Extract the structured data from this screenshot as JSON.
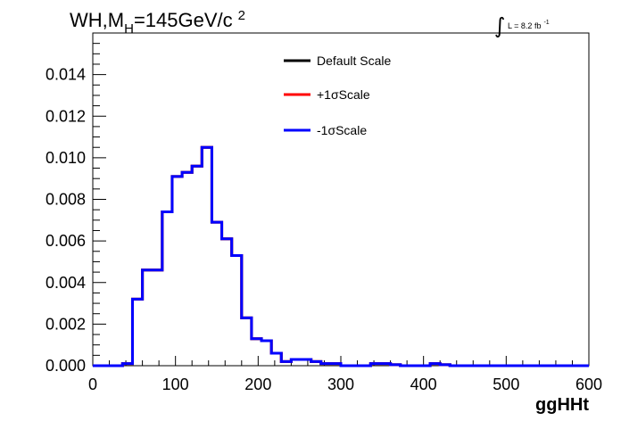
{
  "chart_data": {
    "type": "line",
    "title": {
      "main": "WH,M",
      "sub": "H",
      "rest": "=145GeV/c",
      "sup": "2"
    },
    "lumi": {
      "text": "L = 8.2 fb",
      "sup": "-1"
    },
    "xlabel": "ggHHt",
    "ylabel": "",
    "xlim": [
      0,
      600
    ],
    "ylim": [
      0,
      0.016
    ],
    "grid": false,
    "x_ticks": [
      "0",
      "100",
      "200",
      "300",
      "400",
      "500",
      "600"
    ],
    "y_ticks": [
      "0.000",
      "0.002",
      "0.004",
      "0.006",
      "0.008",
      "0.010",
      "0.012",
      "0.014"
    ],
    "legend": {
      "placement": "top-center",
      "entries": [
        {
          "label": "Default Scale",
          "color": "#000000"
        },
        {
          "label": "+1σScale",
          "color": "#ff0000"
        },
        {
          "label": "-1σScale",
          "color": "#0000ff"
        }
      ]
    },
    "bin_width": 12,
    "bin_edges_start": 0,
    "series": [
      {
        "name": "Default Scale",
        "color": "#000000",
        "values": [
          0,
          0,
          0,
          0.0001,
          0.0032,
          0.0046,
          0.0046,
          0.0074,
          0.0091,
          0.0093,
          0.0096,
          0.0105,
          0.0069,
          0.0061,
          0.0053,
          0.0023,
          0.0013,
          0.0012,
          0.0006,
          0.0002,
          0.0003,
          0.0003,
          0.0002,
          0.0001,
          0.0001,
          0,
          0,
          0,
          0.0001,
          0.0001,
          5e-05,
          0,
          0,
          0,
          0.0001,
          5e-05,
          0,
          0,
          0,
          0,
          0,
          0,
          0,
          0,
          0,
          0,
          0,
          0,
          0,
          0
        ]
      },
      {
        "name": "+1σScale",
        "color": "#ff0000",
        "values": [
          0,
          0,
          0,
          0.0001,
          0.0032,
          0.0046,
          0.0046,
          0.0074,
          0.0091,
          0.0093,
          0.0096,
          0.0105,
          0.0069,
          0.0061,
          0.0053,
          0.0023,
          0.0013,
          0.0012,
          0.0006,
          0.0002,
          0.0003,
          0.0003,
          0.0002,
          0.0001,
          0.0001,
          0,
          0,
          0,
          0.0001,
          0.0001,
          5e-05,
          0,
          0,
          0,
          0.0001,
          5e-05,
          0,
          0,
          0,
          0,
          0,
          0,
          0,
          0,
          0,
          0,
          0,
          0,
          0,
          0
        ]
      },
      {
        "name": "-1σScale",
        "color": "#0000ff",
        "values": [
          0,
          0,
          0,
          0.0001,
          0.0032,
          0.0046,
          0.0046,
          0.0074,
          0.0091,
          0.0093,
          0.0096,
          0.0105,
          0.0069,
          0.0061,
          0.0053,
          0.0023,
          0.0013,
          0.0012,
          0.0006,
          0.0002,
          0.0003,
          0.0003,
          0.0002,
          0.0001,
          0.0001,
          0,
          0,
          0,
          0.0001,
          0.0001,
          5e-05,
          0,
          0,
          0,
          0.0001,
          5e-05,
          0,
          0,
          0,
          0,
          0,
          0,
          0,
          0,
          0,
          0,
          0,
          0,
          0,
          0
        ]
      }
    ]
  }
}
